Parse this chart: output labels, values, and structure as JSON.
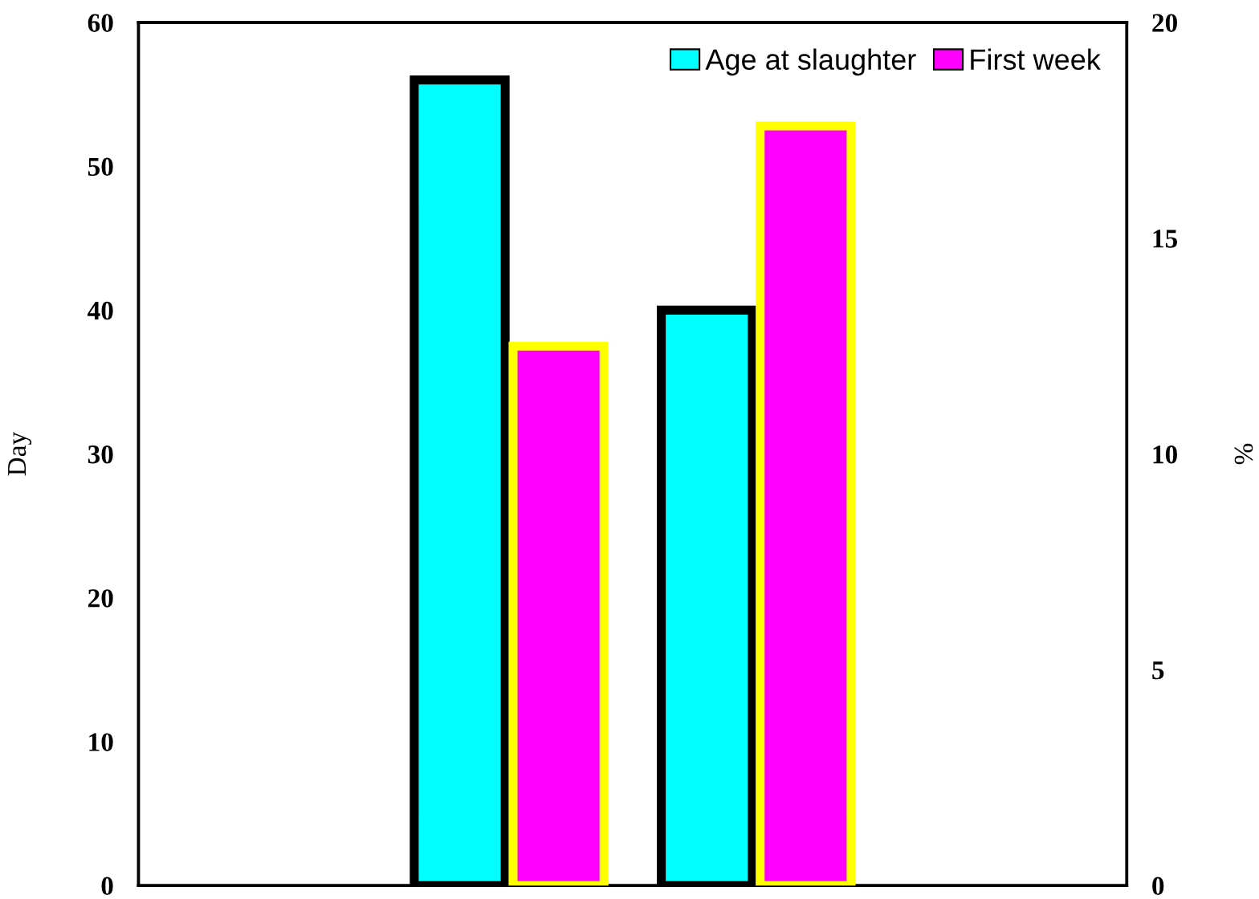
{
  "chart_data": {
    "type": "bar",
    "ylabel": "Day",
    "y2label": "%",
    "categories": [
      null,
      null,
      null,
      null
    ],
    "series": [
      {
        "name": "Age at slaughter",
        "color": "#00ffff",
        "values": [
          null,
          56,
          40,
          null
        ]
      },
      {
        "name": "First week",
        "color": "#ff00ff",
        "axis": "y2",
        "values": [
          null,
          12.5,
          17.6,
          null
        ]
      }
    ],
    "ylim": [
      0,
      60
    ],
    "yticks": [
      0,
      10,
      20,
      30,
      40,
      50,
      60
    ],
    "y2lim": [
      0,
      20
    ],
    "y2ticks": [
      0,
      5,
      10,
      15,
      20
    ],
    "legend": "top right",
    "grid": false
  }
}
